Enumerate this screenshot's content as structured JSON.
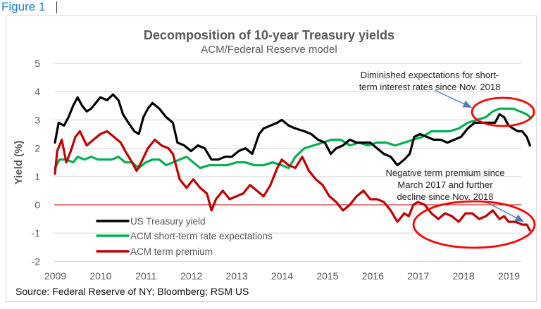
{
  "figure_label": "Figure 1",
  "chart_data": {
    "type": "line",
    "title": "Decomposition of 10-year Treasury yields",
    "subtitle": "ACM/Federal Reserve model",
    "xlabel": "",
    "ylabel": "Yield (%)",
    "xlim": [
      2009,
      2019.7
    ],
    "ylim": [
      -2,
      5
    ],
    "y_ticks": [
      "5",
      "4",
      "3",
      "2",
      "1",
      "0",
      "-1",
      "-2"
    ],
    "y_tick_values": [
      5,
      4,
      3,
      2,
      1,
      0,
      -1,
      -2
    ],
    "x_ticks": [
      "2009",
      "2010",
      "2011",
      "2012",
      "2013",
      "2014",
      "2015",
      "2016",
      "2017",
      "2018",
      "2019"
    ],
    "x_tick_values": [
      2009,
      2010,
      2011,
      2012,
      2013,
      2014,
      2015,
      2016,
      2017,
      2018,
      2019
    ],
    "grid": true,
    "zero_line_color": "#c00000",
    "legend_position": "bottom-left",
    "series": [
      {
        "name": "US Treasury yield",
        "color": "#000000",
        "x": [
          2009.0,
          2009.08,
          2009.2,
          2009.3,
          2009.4,
          2009.5,
          2009.6,
          2009.7,
          2009.8,
          2009.9,
          2010.0,
          2010.15,
          2010.28,
          2010.4,
          2010.5,
          2010.62,
          2010.75,
          2010.85,
          2010.95,
          2011.05,
          2011.15,
          2011.3,
          2011.45,
          2011.6,
          2011.7,
          2011.85,
          2012.0,
          2012.15,
          2012.3,
          2012.45,
          2012.6,
          2012.75,
          2012.9,
          2013.05,
          2013.2,
          2013.35,
          2013.5,
          2013.6,
          2013.75,
          2013.9,
          2014.0,
          2014.15,
          2014.3,
          2014.5,
          2014.65,
          2014.8,
          2014.95,
          2015.08,
          2015.2,
          2015.35,
          2015.5,
          2015.65,
          2015.8,
          2015.95,
          2016.1,
          2016.25,
          2016.4,
          2016.55,
          2016.7,
          2016.82,
          2016.92,
          2017.05,
          2017.2,
          2017.35,
          2017.5,
          2017.65,
          2017.8,
          2017.95,
          2018.1,
          2018.25,
          2018.4,
          2018.55,
          2018.7,
          2018.8,
          2018.9,
          2019.0,
          2019.1,
          2019.2,
          2019.3,
          2019.4,
          2019.47
        ],
        "values": [
          2.2,
          2.9,
          2.8,
          3.1,
          3.5,
          3.8,
          3.5,
          3.3,
          3.4,
          3.6,
          3.8,
          3.7,
          3.9,
          3.7,
          3.2,
          2.9,
          2.6,
          2.5,
          3.1,
          3.4,
          3.6,
          3.4,
          3.1,
          2.9,
          2.2,
          2.1,
          1.9,
          2.1,
          2.0,
          1.6,
          1.6,
          1.7,
          1.7,
          1.9,
          2.0,
          1.8,
          2.5,
          2.7,
          2.8,
          2.9,
          3.0,
          2.8,
          2.7,
          2.6,
          2.5,
          2.3,
          2.2,
          1.8,
          2.0,
          2.1,
          2.3,
          2.2,
          2.2,
          2.2,
          2.0,
          1.8,
          1.7,
          1.4,
          1.6,
          1.8,
          2.4,
          2.5,
          2.4,
          2.3,
          2.3,
          2.2,
          2.3,
          2.4,
          2.7,
          2.9,
          2.9,
          2.9,
          2.9,
          3.2,
          3.1,
          2.8,
          2.7,
          2.6,
          2.6,
          2.4,
          2.1
        ]
      },
      {
        "name": "ACM short-term rate expectations",
        "color": "#00b050",
        "x": [
          2009.0,
          2009.1,
          2009.25,
          2009.4,
          2009.5,
          2009.65,
          2009.8,
          2009.95,
          2010.1,
          2010.25,
          2010.4,
          2010.55,
          2010.7,
          2010.85,
          2011.0,
          2011.15,
          2011.3,
          2011.45,
          2011.6,
          2011.75,
          2011.9,
          2012.05,
          2012.2,
          2012.4,
          2012.6,
          2012.8,
          2013.0,
          2013.2,
          2013.4,
          2013.6,
          2013.8,
          2014.0,
          2014.15,
          2014.3,
          2014.5,
          2014.7,
          2014.9,
          2015.1,
          2015.3,
          2015.5,
          2015.7,
          2015.9,
          2016.1,
          2016.3,
          2016.5,
          2016.7,
          2016.9,
          2017.1,
          2017.3,
          2017.5,
          2017.7,
          2017.9,
          2018.1,
          2018.3,
          2018.5,
          2018.65,
          2018.8,
          2018.95,
          2019.1,
          2019.25,
          2019.4,
          2019.47
        ],
        "values": [
          1.3,
          1.6,
          1.6,
          1.5,
          1.7,
          1.6,
          1.7,
          1.6,
          1.6,
          1.6,
          1.7,
          1.5,
          1.5,
          1.3,
          1.5,
          1.6,
          1.6,
          1.4,
          1.5,
          1.6,
          1.7,
          1.5,
          1.3,
          1.4,
          1.4,
          1.4,
          1.5,
          1.5,
          1.4,
          1.4,
          1.5,
          1.4,
          1.3,
          1.7,
          2.0,
          2.1,
          2.2,
          2.3,
          2.3,
          2.1,
          2.2,
          2.1,
          2.2,
          2.2,
          2.1,
          2.2,
          2.3,
          2.4,
          2.6,
          2.6,
          2.6,
          2.7,
          2.9,
          3.0,
          3.1,
          3.3,
          3.4,
          3.4,
          3.4,
          3.3,
          3.2,
          3.1
        ]
      },
      {
        "name": "ACM term premium",
        "color": "#c00000",
        "x": [
          2009.0,
          2009.05,
          2009.15,
          2009.25,
          2009.35,
          2009.45,
          2009.55,
          2009.7,
          2009.85,
          2010.0,
          2010.15,
          2010.3,
          2010.45,
          2010.55,
          2010.7,
          2010.8,
          2010.9,
          2011.05,
          2011.2,
          2011.35,
          2011.5,
          2011.6,
          2011.75,
          2011.9,
          2012.05,
          2012.2,
          2012.35,
          2012.45,
          2012.55,
          2012.7,
          2012.85,
          2013.0,
          2013.15,
          2013.3,
          2013.45,
          2013.6,
          2013.75,
          2013.9,
          2014.0,
          2014.15,
          2014.3,
          2014.45,
          2014.6,
          2014.75,
          2014.9,
          2015.05,
          2015.2,
          2015.35,
          2015.5,
          2015.65,
          2015.8,
          2015.95,
          2016.1,
          2016.25,
          2016.4,
          2016.55,
          2016.7,
          2016.8,
          2016.9,
          2017.0,
          2017.15,
          2017.3,
          2017.45,
          2017.6,
          2017.75,
          2017.9,
          2018.05,
          2018.2,
          2018.35,
          2018.5,
          2018.65,
          2018.8,
          2018.9,
          2019.0,
          2019.15,
          2019.3,
          2019.4,
          2019.47
        ],
        "values": [
          1.1,
          1.9,
          2.3,
          1.5,
          1.9,
          2.4,
          2.6,
          2.1,
          2.3,
          2.5,
          2.6,
          2.4,
          2.2,
          1.9,
          1.5,
          1.2,
          1.5,
          2.0,
          2.3,
          2.1,
          2.0,
          1.8,
          0.9,
          0.6,
          0.9,
          0.6,
          0.4,
          -0.2,
          0.2,
          0.5,
          0.2,
          0.3,
          0.4,
          0.7,
          0.5,
          0.3,
          0.7,
          1.3,
          1.6,
          1.4,
          1.3,
          1.7,
          1.2,
          0.9,
          0.7,
          0.3,
          0.1,
          -0.2,
          0.0,
          0.3,
          0.5,
          0.2,
          0.2,
          0.1,
          -0.2,
          -0.6,
          -0.3,
          -0.4,
          0.0,
          0.1,
          0.0,
          -0.3,
          -0.5,
          -0.3,
          -0.4,
          -0.6,
          -0.3,
          -0.3,
          -0.5,
          -0.4,
          -0.2,
          -0.5,
          -0.4,
          -0.6,
          -0.6,
          -0.7,
          -0.7,
          -0.9
        ]
      }
    ],
    "annotations": [
      {
        "id": "short-rate-note",
        "lines": [
          "Diminished expectations for short-",
          "term interest rates since Nov. 2018"
        ]
      },
      {
        "id": "term-premium-note",
        "lines": [
          "Negative term premium since",
          "March 2017 and further",
          "decline since Nov. 2018"
        ]
      }
    ],
    "highlight_color": "#ff0000",
    "arrow_color": "#4a7ebb",
    "source": "Source: Federal Reserve of NY; Bloomberg; RSM US"
  }
}
